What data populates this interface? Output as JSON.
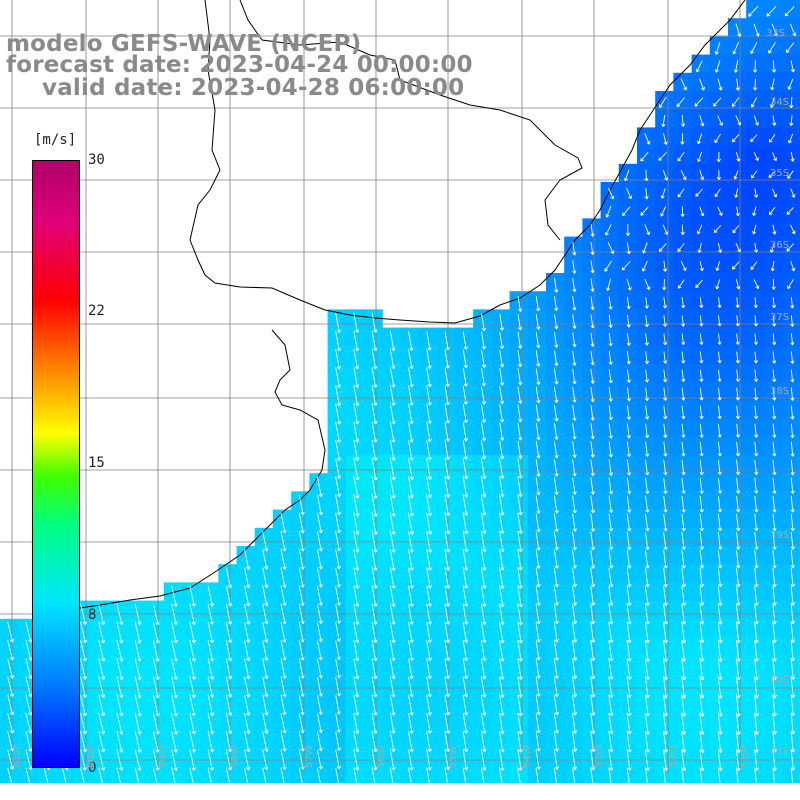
{
  "title": {
    "line1": "modelo GEFS-WAVE (NCEP)",
    "line2": "forecast date: 2023-04-24 00:00:00",
    "line3": "valid date: 2023-04-28 06:00:00"
  },
  "colorbar": {
    "unit": "[m/s]",
    "ticks": [
      "30",
      "22",
      "15",
      "8",
      "0"
    ],
    "tick_values": [
      30,
      22,
      15,
      8,
      0
    ],
    "colors": [
      "#0000ff",
      "#0080ff",
      "#00e5ff",
      "#00ff80",
      "#ffff00",
      "#ff0000",
      "#b0006a"
    ]
  },
  "lat_labels": [
    "33S",
    "34S",
    "35S",
    "36S",
    "37S",
    "38S",
    "39S",
    "40S",
    "41S"
  ],
  "lon_labels": [
    "61W",
    "60W",
    "59W",
    "58W",
    "57W",
    "56W",
    "55W",
    "54W",
    "53W",
    "52W",
    "51W"
  ],
  "colors": {
    "land": "#ffffff",
    "coast": "#000000",
    "grid": "#808080",
    "arrow": "#ffffff",
    "title": "#8a8a8a"
  }
}
